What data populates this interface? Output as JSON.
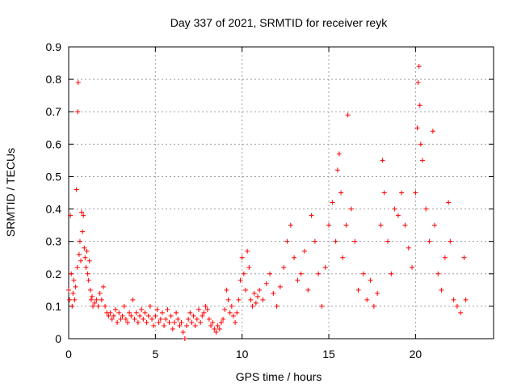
{
  "chart_data": {
    "type": "scatter",
    "title": "Day 337 of 2021, SRMTID for receiver reyk",
    "xlabel": "GPS time / hours",
    "ylabel": "SRMTID / TECUs",
    "xlim": [
      0,
      24.5
    ],
    "ylim": [
      0,
      0.9
    ],
    "x_ticks": [
      0,
      5,
      10,
      15,
      20
    ],
    "y_ticks": [
      0,
      0.1,
      0.2,
      0.3,
      0.4,
      0.5,
      0.6,
      0.7,
      0.8,
      0.9
    ],
    "x_tick_labels": [
      "0",
      "5",
      "10",
      "15",
      "20"
    ],
    "y_tick_labels": [
      "0",
      "0.1",
      "0.2",
      "0.3",
      "0.4",
      "0.5",
      "0.6",
      "0.7",
      "0.8",
      "0.9"
    ],
    "grid": true,
    "marker": "+",
    "color": "#ff0000",
    "series": [
      {
        "name": "SRMTID",
        "points": [
          [
            0.0,
            0.15
          ],
          [
            0.05,
            0.12
          ],
          [
            0.1,
            0.38
          ],
          [
            0.15,
            0.2
          ],
          [
            0.2,
            0.1
          ],
          [
            0.25,
            0.14
          ],
          [
            0.3,
            0.18
          ],
          [
            0.35,
            0.12
          ],
          [
            0.4,
            0.16
          ],
          [
            0.45,
            0.46
          ],
          [
            0.5,
            0.22
          ],
          [
            0.52,
            0.7
          ],
          [
            0.55,
            0.79
          ],
          [
            0.6,
            0.26
          ],
          [
            0.65,
            0.3
          ],
          [
            0.7,
            0.24
          ],
          [
            0.75,
            0.39
          ],
          [
            0.8,
            0.33
          ],
          [
            0.85,
            0.38
          ],
          [
            0.9,
            0.28
          ],
          [
            0.95,
            0.25
          ],
          [
            1.0,
            0.22
          ],
          [
            1.05,
            0.27
          ],
          [
            1.1,
            0.2
          ],
          [
            1.15,
            0.18
          ],
          [
            1.2,
            0.24
          ],
          [
            1.25,
            0.15
          ],
          [
            1.3,
            0.12
          ],
          [
            1.35,
            0.13
          ],
          [
            1.4,
            0.1
          ],
          [
            1.5,
            0.11
          ],
          [
            1.6,
            0.12
          ],
          [
            1.7,
            0.1
          ],
          [
            1.8,
            0.14
          ],
          [
            1.9,
            0.12
          ],
          [
            2.0,
            0.16
          ],
          [
            2.1,
            0.1
          ],
          [
            2.2,
            0.08
          ],
          [
            2.3,
            0.07
          ],
          [
            2.4,
            0.08
          ],
          [
            2.5,
            0.06
          ],
          [
            2.6,
            0.07
          ],
          [
            2.7,
            0.09
          ],
          [
            2.8,
            0.05
          ],
          [
            2.9,
            0.08
          ],
          [
            3.0,
            0.06
          ],
          [
            3.1,
            0.07
          ],
          [
            3.2,
            0.1
          ],
          [
            3.3,
            0.06
          ],
          [
            3.4,
            0.05
          ],
          [
            3.5,
            0.08
          ],
          [
            3.6,
            0.07
          ],
          [
            3.7,
            0.12
          ],
          [
            3.8,
            0.06
          ],
          [
            3.9,
            0.08
          ],
          [
            4.0,
            0.05
          ],
          [
            4.1,
            0.07
          ],
          [
            4.2,
            0.09
          ],
          [
            4.3,
            0.06
          ],
          [
            4.4,
            0.08
          ],
          [
            4.5,
            0.05
          ],
          [
            4.6,
            0.07
          ],
          [
            4.7,
            0.1
          ],
          [
            4.8,
            0.06
          ],
          [
            4.9,
            0.04
          ],
          [
            5.0,
            0.07
          ],
          [
            5.1,
            0.09
          ],
          [
            5.2,
            0.05
          ],
          [
            5.3,
            0.06
          ],
          [
            5.4,
            0.08
          ],
          [
            5.5,
            0.04
          ],
          [
            5.6,
            0.06
          ],
          [
            5.7,
            0.09
          ],
          [
            5.8,
            0.05
          ],
          [
            5.9,
            0.07
          ],
          [
            6.0,
            0.03
          ],
          [
            6.1,
            0.05
          ],
          [
            6.2,
            0.08
          ],
          [
            6.3,
            0.06
          ],
          [
            6.4,
            0.04
          ],
          [
            6.5,
            0.05
          ],
          [
            6.6,
            0.02
          ],
          [
            6.7,
            0.0
          ],
          [
            6.8,
            0.04
          ],
          [
            6.9,
            0.06
          ],
          [
            7.0,
            0.08
          ],
          [
            7.1,
            0.05
          ],
          [
            7.2,
            0.07
          ],
          [
            7.3,
            0.04
          ],
          [
            7.4,
            0.06
          ],
          [
            7.5,
            0.09
          ],
          [
            7.6,
            0.05
          ],
          [
            7.7,
            0.07
          ],
          [
            7.8,
            0.08
          ],
          [
            7.9,
            0.1
          ],
          [
            8.0,
            0.09
          ],
          [
            8.1,
            0.06
          ],
          [
            8.2,
            0.04
          ],
          [
            8.3,
            0.05
          ],
          [
            8.4,
            0.03
          ],
          [
            8.5,
            0.02
          ],
          [
            8.6,
            0.04
          ],
          [
            8.7,
            0.03
          ],
          [
            8.8,
            0.05
          ],
          [
            8.9,
            0.06
          ],
          [
            9.0,
            0.09
          ],
          [
            9.1,
            0.15
          ],
          [
            9.2,
            0.12
          ],
          [
            9.3,
            0.08
          ],
          [
            9.4,
            0.1
          ],
          [
            9.5,
            0.07
          ],
          [
            9.6,
            0.05
          ],
          [
            9.7,
            0.08
          ],
          [
            9.8,
            0.12
          ],
          [
            9.9,
            0.18
          ],
          [
            10.0,
            0.25
          ],
          [
            10.1,
            0.2
          ],
          [
            10.2,
            0.15
          ],
          [
            10.3,
            0.27
          ],
          [
            10.4,
            0.22
          ],
          [
            10.5,
            0.12
          ],
          [
            10.6,
            0.1
          ],
          [
            10.7,
            0.14
          ],
          [
            10.8,
            0.11
          ],
          [
            10.9,
            0.13
          ],
          [
            11.0,
            0.15
          ],
          [
            11.2,
            0.12
          ],
          [
            11.4,
            0.17
          ],
          [
            11.6,
            0.2
          ],
          [
            11.8,
            0.14
          ],
          [
            12.0,
            0.1
          ],
          [
            12.2,
            0.16
          ],
          [
            12.4,
            0.22
          ],
          [
            12.6,
            0.3
          ],
          [
            12.8,
            0.35
          ],
          [
            13.0,
            0.25
          ],
          [
            13.2,
            0.18
          ],
          [
            13.4,
            0.2
          ],
          [
            13.6,
            0.27
          ],
          [
            13.8,
            0.15
          ],
          [
            14.0,
            0.38
          ],
          [
            14.2,
            0.3
          ],
          [
            14.4,
            0.2
          ],
          [
            14.6,
            0.1
          ],
          [
            14.8,
            0.22
          ],
          [
            15.0,
            0.35
          ],
          [
            15.2,
            0.42
          ],
          [
            15.4,
            0.3
          ],
          [
            15.5,
            0.52
          ],
          [
            15.6,
            0.57
          ],
          [
            15.7,
            0.45
          ],
          [
            15.8,
            0.25
          ],
          [
            16.0,
            0.35
          ],
          [
            16.1,
            0.69
          ],
          [
            16.3,
            0.4
          ],
          [
            16.5,
            0.3
          ],
          [
            16.7,
            0.15
          ],
          [
            17.0,
            0.2
          ],
          [
            17.2,
            0.12
          ],
          [
            17.4,
            0.18
          ],
          [
            17.6,
            0.1
          ],
          [
            17.8,
            0.14
          ],
          [
            18.0,
            0.35
          ],
          [
            18.1,
            0.55
          ],
          [
            18.2,
            0.45
          ],
          [
            18.4,
            0.3
          ],
          [
            18.6,
            0.2
          ],
          [
            18.8,
            0.4
          ],
          [
            19.0,
            0.38
          ],
          [
            19.2,
            0.45
          ],
          [
            19.4,
            0.35
          ],
          [
            19.6,
            0.28
          ],
          [
            19.8,
            0.22
          ],
          [
            20.0,
            0.45
          ],
          [
            20.1,
            0.65
          ],
          [
            20.15,
            0.79
          ],
          [
            20.2,
            0.84
          ],
          [
            20.25,
            0.72
          ],
          [
            20.3,
            0.6
          ],
          [
            20.4,
            0.55
          ],
          [
            20.6,
            0.4
          ],
          [
            20.8,
            0.3
          ],
          [
            21.0,
            0.64
          ],
          [
            21.1,
            0.35
          ],
          [
            21.3,
            0.2
          ],
          [
            21.5,
            0.15
          ],
          [
            21.7,
            0.25
          ],
          [
            21.9,
            0.42
          ],
          [
            22.0,
            0.3
          ],
          [
            22.2,
            0.12
          ],
          [
            22.4,
            0.1
          ],
          [
            22.6,
            0.08
          ],
          [
            22.8,
            0.25
          ],
          [
            22.9,
            0.12
          ]
        ]
      }
    ]
  }
}
